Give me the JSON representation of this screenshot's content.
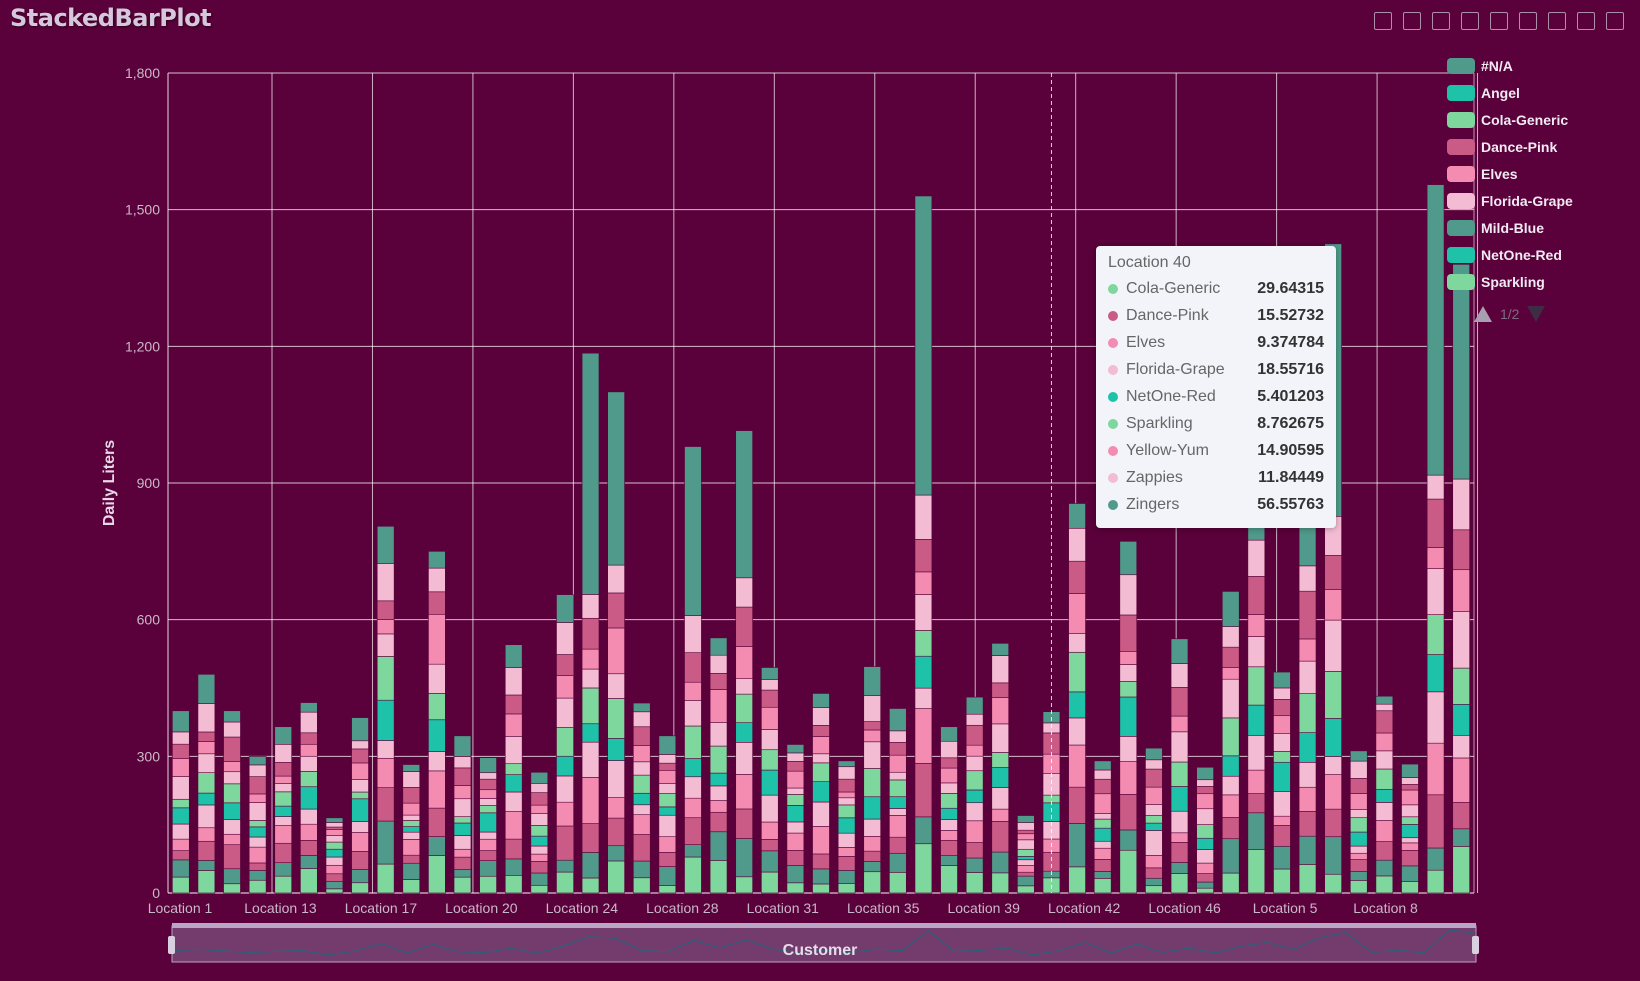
{
  "app": {
    "title": "StackedBarPlot"
  },
  "toolbar": {
    "icons": [
      "zoom-select-icon",
      "zoom-reset-icon",
      "download-icon",
      "fullscreen-icon",
      "lasso-icon",
      "pan-icon",
      "brush-icon",
      "data-view-icon",
      "close-icon"
    ]
  },
  "colors": {
    "background": "#5a003a",
    "#N/A": "#4f9a8a",
    "Angel": "#1ec2a8",
    "Cola-Generic": "#7ed79d",
    "Dance-Pink": "#c95b86",
    "Elves": "#f48cb2",
    "Florida-Grape": "#f3bcd3",
    "Mild-Blue": "#4f9a8a",
    "NetOne-Red": "#1ec2a8",
    "Sparkling": "#7ed79d",
    "Yellow-Yum": "#f48cb2",
    "Zappies": "#f3bcd3",
    "Zingers": "#4f9a8a"
  },
  "legend": {
    "items": [
      "#N/A",
      "Angel",
      "Cola-Generic",
      "Dance-Pink",
      "Elves",
      "Florida-Grape",
      "Mild-Blue",
      "NetOne-Red",
      "Sparkling"
    ],
    "page": "1/2"
  },
  "tooltip": {
    "title": "Location 40",
    "rows": [
      {
        "name": "Cola-Generic",
        "value": "29.64315"
      },
      {
        "name": "Dance-Pink",
        "value": "15.52732"
      },
      {
        "name": "Elves",
        "value": "9.374784"
      },
      {
        "name": "Florida-Grape",
        "value": "18.55716"
      },
      {
        "name": "NetOne-Red",
        "value": "5.401203"
      },
      {
        "name": "Sparkling",
        "value": "8.762675"
      },
      {
        "name": "Yellow-Yum",
        "value": "14.90595"
      },
      {
        "name": "Zappies",
        "value": "11.84449"
      },
      {
        "name": "Zingers",
        "value": "56.55763"
      }
    ]
  },
  "datazoom": {
    "label": "Customer"
  },
  "chart_data": {
    "type": "bar",
    "stacked": true,
    "ylabel": "Daily Liters",
    "ylim": [
      0,
      1800
    ],
    "yticks": [
      0,
      300,
      600,
      900,
      1200,
      1500,
      1800
    ],
    "ytick_labels": [
      "0",
      "300",
      "600",
      "900",
      "1,200",
      "1,500",
      "1,800"
    ],
    "grid": true,
    "legend_position": "top-right",
    "x_tick_labels": [
      "Location 1",
      "Location 13",
      "Location 17",
      "Location 20",
      "Location 24",
      "Location 28",
      "Location 31",
      "Location 35",
      "Location 39",
      "Location 42",
      "Location 46",
      "Location 5",
      "Location 8"
    ],
    "highlighted_category": "Location 40",
    "totals": [
      400,
      480,
      400,
      300,
      365,
      418,
      165,
      385,
      805,
      282,
      750,
      345,
      297,
      545,
      265,
      655,
      1185,
      1100,
      417,
      345,
      980,
      560,
      1015,
      495,
      326,
      438,
      290,
      497,
      405,
      1530,
      365,
      430,
      548,
      170,
      398,
      855,
      290,
      772,
      318,
      558,
      276,
      662,
      860,
      485,
      1115,
      1425,
      312,
      432,
      283,
      1555,
      1380
    ],
    "totals_note": "estimated stacked total per customer bar, left to right",
    "series_names": [
      "#N/A",
      "Angel",
      "Cola-Generic",
      "Dance-Pink",
      "Elves",
      "Florida-Grape",
      "Mild-Blue",
      "NetOne-Red",
      "Sparkling",
      "Yellow-Yum",
      "Zappies",
      "Zingers"
    ],
    "series_sample": {
      "category": "Location 40",
      "values": {
        "Cola-Generic": 29.64315,
        "Dance-Pink": 15.52732,
        "Elves": 9.374784,
        "Florida-Grape": 18.55716,
        "NetOne-Red": 5.401203,
        "Sparkling": 8.762675,
        "Yellow-Yum": 14.90595,
        "Zappies": 11.84449,
        "Zingers": 56.55763
      }
    }
  }
}
